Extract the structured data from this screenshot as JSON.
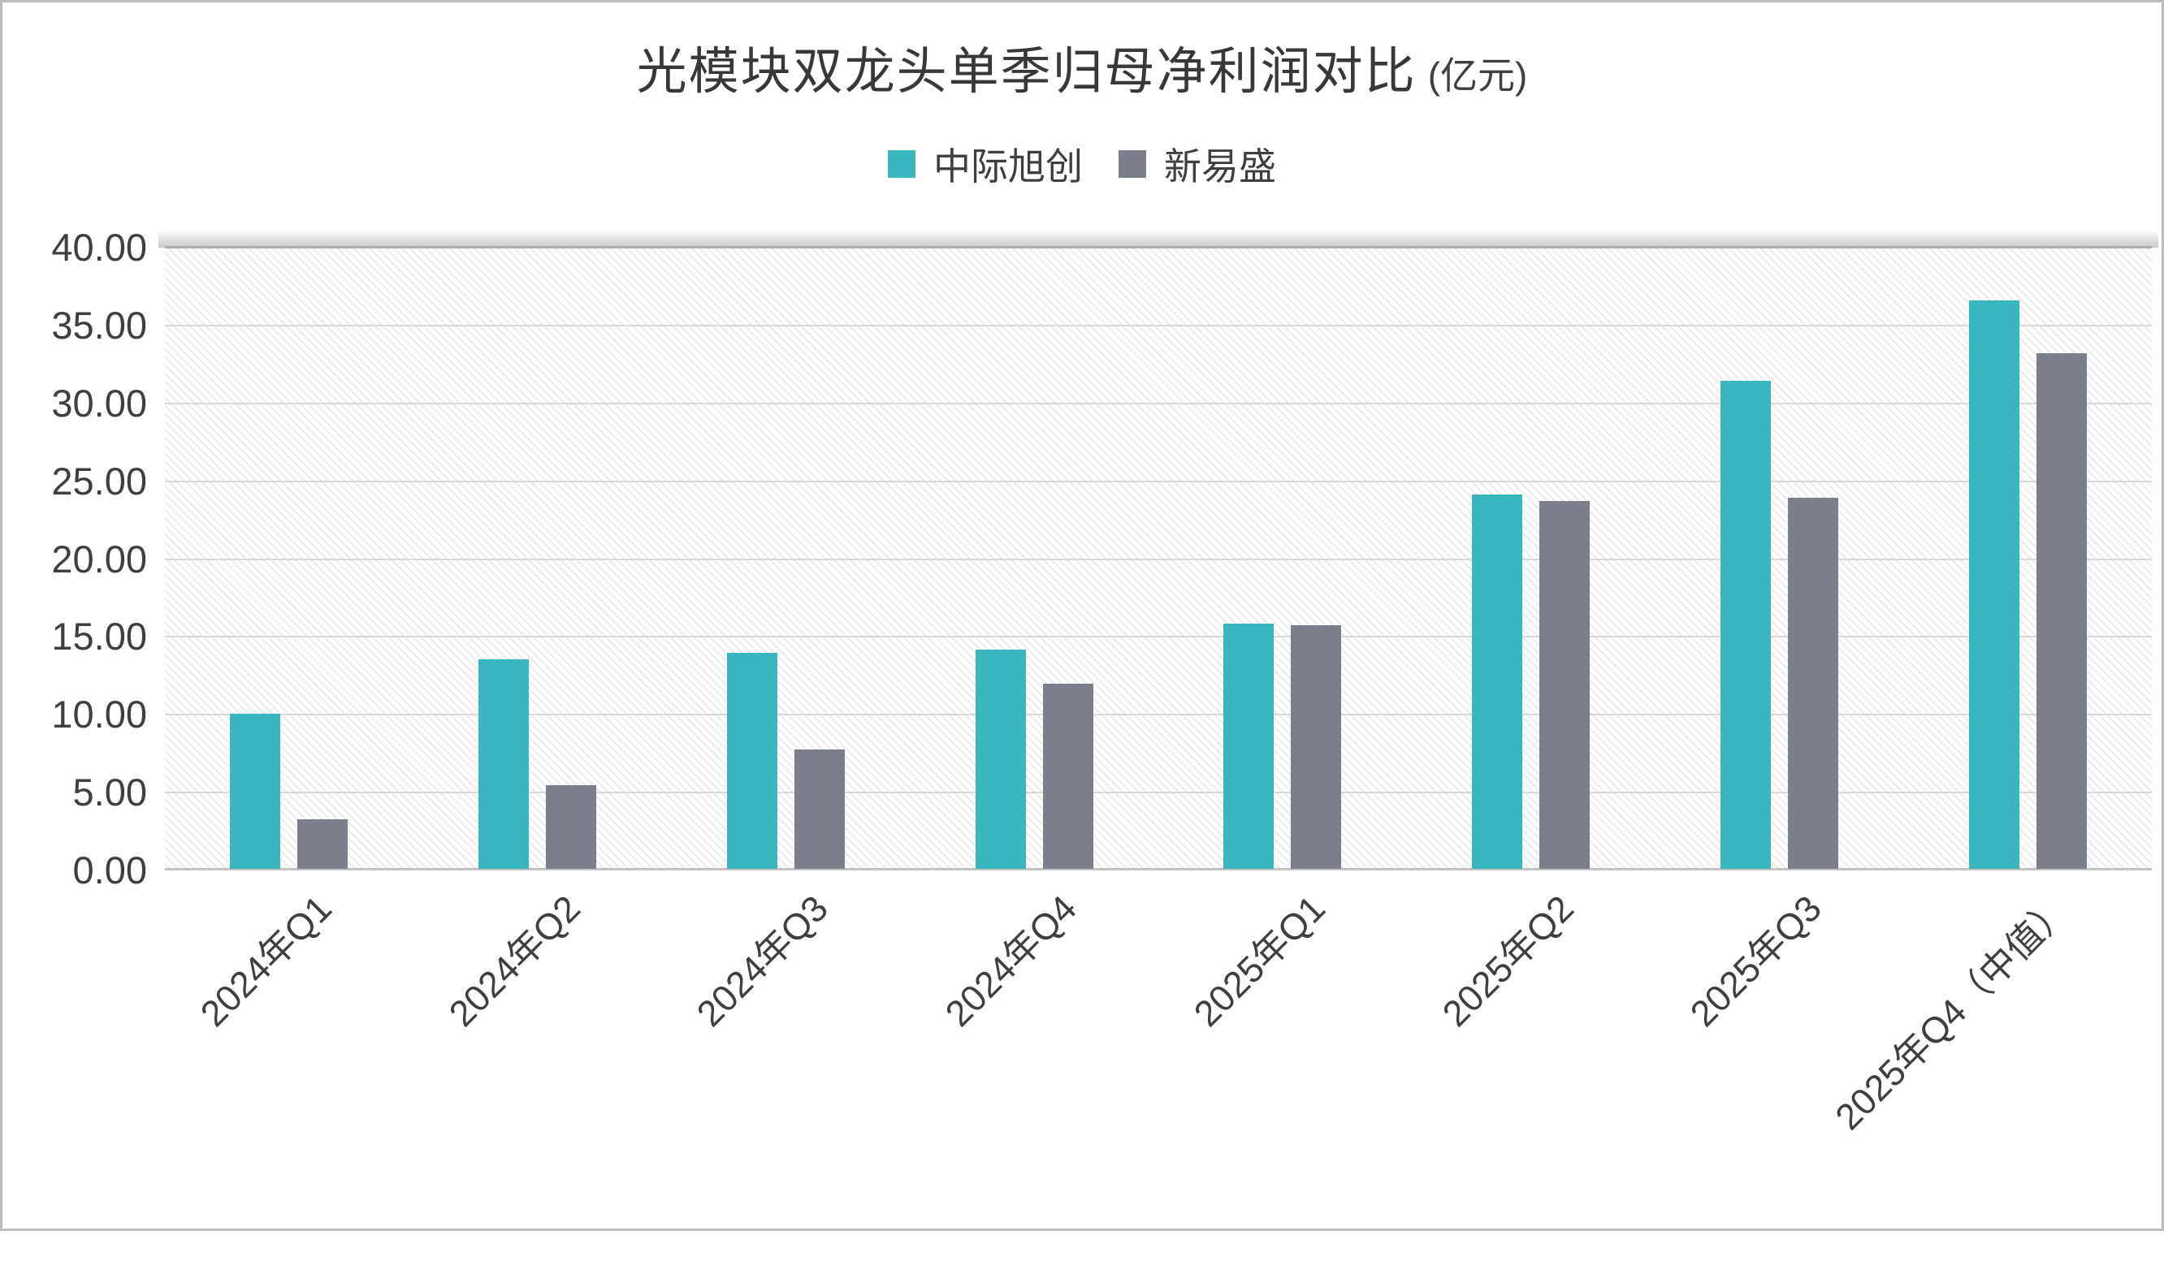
{
  "title": {
    "main": "光模块双龙头单季归母净利润对比",
    "unit": "(亿元)"
  },
  "chart_data": {
    "type": "bar",
    "title": "光模块双龙头单季归母净利润对比 (亿元)",
    "categories": [
      "2024年Q1",
      "2024年Q2",
      "2024年Q3",
      "2024年Q4",
      "2025年Q1",
      "2025年Q2",
      "2025年Q3",
      "2025年Q4（中值）"
    ],
    "series": [
      {
        "name": "中际旭创",
        "color": "#3bb6be",
        "values": [
          10.0,
          13.5,
          13.9,
          14.1,
          15.8,
          24.1,
          31.4,
          36.6
        ]
      },
      {
        "name": "新易盛",
        "color": "#7a7f8b",
        "values": [
          3.2,
          5.4,
          7.7,
          11.9,
          15.7,
          23.7,
          23.9,
          33.2
        ]
      }
    ],
    "xlabel": "",
    "ylabel": "",
    "ylim": [
      0,
      40
    ],
    "y_tick_step": 5,
    "y_tick_labels": [
      "0.00",
      "5.00",
      "10.00",
      "15.00",
      "20.00",
      "25.00",
      "30.00",
      "35.00",
      "40.00"
    ],
    "grid": "horizontal",
    "legend_position": "top",
    "plot_background": "diagonal-hatch"
  },
  "colors": {
    "series_1": "#3bb6be",
    "series_2": "#7a7f8b",
    "gridline": "#d9d9d9",
    "axis_line": "#c3c3c3",
    "text": "#3f3f3f",
    "hatch_stripe": "#ececee",
    "background": "#ffffff"
  }
}
